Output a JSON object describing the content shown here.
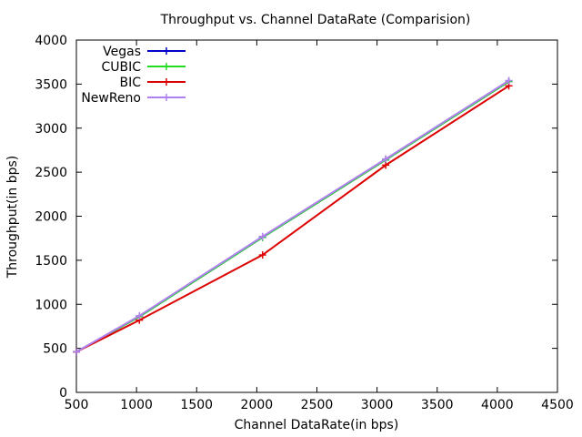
{
  "chart_data": {
    "type": "line",
    "title": "Throughput vs. Channel DataRate (Comparision)",
    "xlabel": "Channel DataRate(in bps)",
    "ylabel": "Throughput(in bps)",
    "xlim": [
      500,
      4500
    ],
    "ylim": [
      0,
      4000
    ],
    "xticks": [
      500,
      1000,
      1500,
      2000,
      2500,
      3000,
      3500,
      4000,
      4500
    ],
    "yticks": [
      0,
      500,
      1000,
      1500,
      2000,
      2500,
      3000,
      3500,
      4000
    ],
    "x": [
      500,
      1024,
      2048,
      3072,
      4096
    ],
    "grid": false,
    "legend_position": "top-left",
    "series": [
      {
        "name": "Vegas",
        "color": "#0000c8",
        "values": [
          460,
          860,
          1760,
          2640,
          3530
        ]
      },
      {
        "name": "CUBIC",
        "color": "#22dd22",
        "values": [
          460,
          860,
          1760,
          2640,
          3530
        ]
      },
      {
        "name": "BIC",
        "color": "#dd0000",
        "values": [
          460,
          820,
          1560,
          2580,
          3480
        ]
      },
      {
        "name": "NewReno",
        "color": "#b080f0",
        "values": [
          460,
          870,
          1770,
          2650,
          3540
        ]
      }
    ]
  }
}
